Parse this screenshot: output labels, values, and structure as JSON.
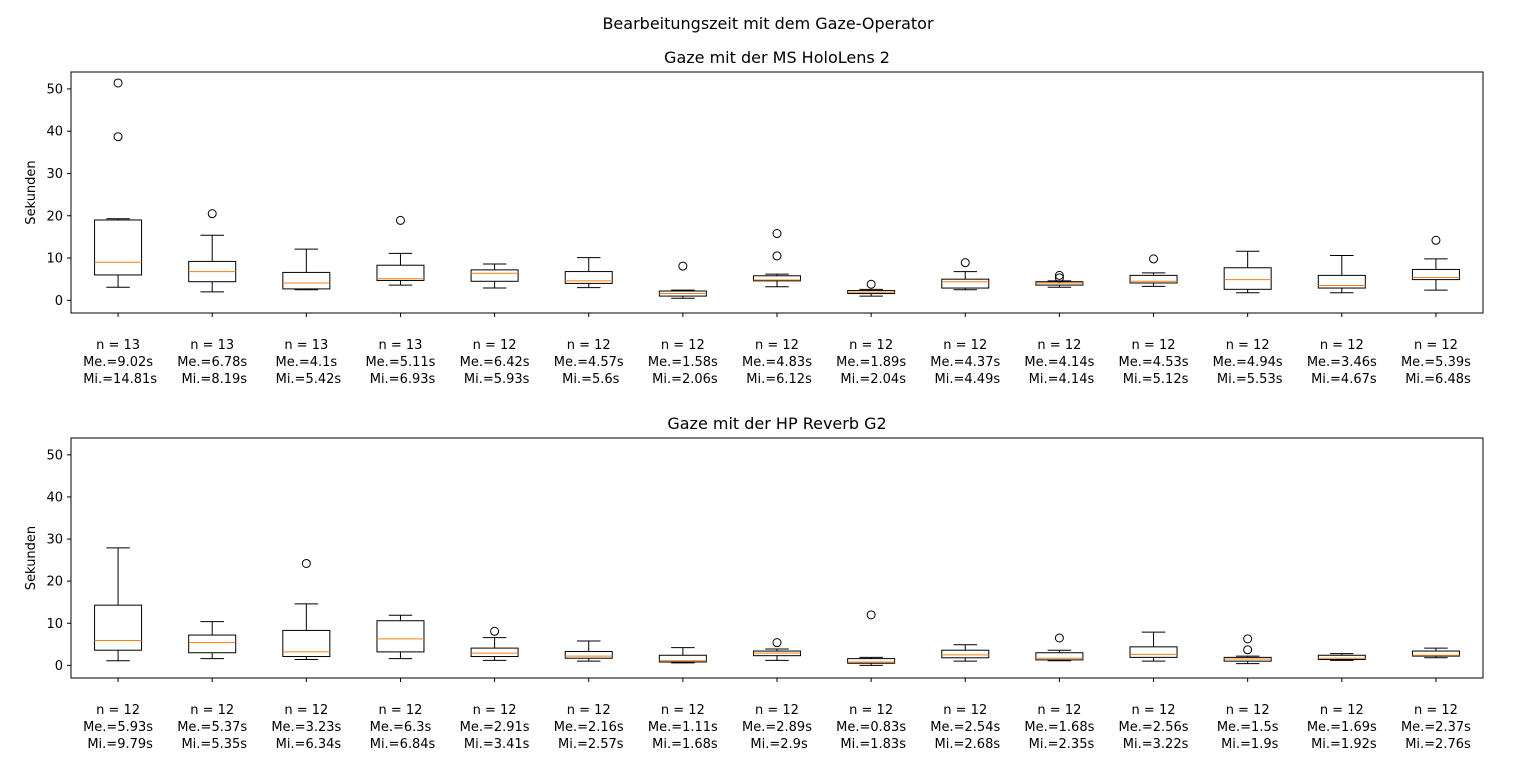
{
  "figure_title": "Bearbeitungszeit mit dem Gaze-Operator",
  "colors": {
    "box": "#000000",
    "median": "#ff7f0e",
    "background": "#ffffff"
  },
  "chart_data": [
    {
      "type": "boxplot",
      "title": "Gaze mit der MS HoloLens 2",
      "ylabel": "Sekunden",
      "ylim": [
        -3,
        54
      ],
      "yticks": [
        "0",
        "10",
        "20",
        "30",
        "40",
        "50"
      ],
      "grid": false,
      "boxes": [
        {
          "label": "n = 13\nMe.=9.02s\n Mi.=14.81s",
          "whislo": 3.1,
          "q1": 6.0,
          "med": 9.0,
          "q3": 19.0,
          "whishi": 19.3,
          "fliers": [
            38.7,
            51.4
          ]
        },
        {
          "label": "n = 13\nMe.=6.78s\n Mi.=8.19s",
          "whislo": 2.0,
          "q1": 4.4,
          "med": 6.8,
          "q3": 9.2,
          "whishi": 15.4,
          "fliers": [
            20.5
          ]
        },
        {
          "label": "n = 13\nMe.=4.1s\n Mi.=5.42s",
          "whislo": 2.5,
          "q1": 2.7,
          "med": 4.1,
          "q3": 6.6,
          "whishi": 12.1,
          "fliers": []
        },
        {
          "label": "n = 13\nMe.=5.11s\n Mi.=6.93s",
          "whislo": 3.6,
          "q1": 4.7,
          "med": 5.1,
          "q3": 8.3,
          "whishi": 11.1,
          "fliers": [
            18.9
          ]
        },
        {
          "label": "n = 12\nMe.=6.42s\n Mi.=5.93s",
          "whislo": 2.9,
          "q1": 4.5,
          "med": 6.4,
          "q3": 7.2,
          "whishi": 8.6,
          "fliers": []
        },
        {
          "label": "n = 12\nMe.=4.57s\n Mi.=5.6s",
          "whislo": 3.0,
          "q1": 4.0,
          "med": 4.6,
          "q3": 6.8,
          "whishi": 10.1,
          "fliers": []
        },
        {
          "label": "n = 12\nMe.=1.58s\n Mi.=2.06s",
          "whislo": 0.5,
          "q1": 1.0,
          "med": 1.6,
          "q3": 2.2,
          "whishi": 2.4,
          "fliers": [
            8.1
          ]
        },
        {
          "label": "n = 12\nMe.=4.83s\n Mi.=6.12s",
          "whislo": 3.2,
          "q1": 4.6,
          "med": 4.8,
          "q3": 5.8,
          "whishi": 6.2,
          "fliers": [
            10.5,
            15.8
          ]
        },
        {
          "label": "n = 12\nMe.=1.89s\n Mi.=2.04s",
          "whislo": 1.0,
          "q1": 1.6,
          "med": 1.9,
          "q3": 2.3,
          "whishi": 2.6,
          "fliers": [
            3.8
          ]
        },
        {
          "label": "n = 12\nMe.=4.37s\n Mi.=4.49s",
          "whislo": 2.5,
          "q1": 2.9,
          "med": 4.4,
          "q3": 5.0,
          "whishi": 6.8,
          "fliers": [
            8.9
          ]
        },
        {
          "label": "n = 12\nMe.=4.14s\n Mi.=4.14s",
          "whislo": 3.1,
          "q1": 3.6,
          "med": 4.1,
          "q3": 4.4,
          "whishi": 4.6,
          "fliers": [
            5.3,
            5.9
          ]
        },
        {
          "label": "n = 12\nMe.=4.53s\n Mi.=5.12s",
          "whislo": 3.3,
          "q1": 4.1,
          "med": 4.5,
          "q3": 5.9,
          "whishi": 6.5,
          "fliers": [
            9.8
          ]
        },
        {
          "label": "n = 12\nMe.=4.94s\n Mi.=5.53s",
          "whislo": 1.8,
          "q1": 2.6,
          "med": 4.9,
          "q3": 7.7,
          "whishi": 11.6,
          "fliers": []
        },
        {
          "label": "n = 12\nMe.=3.46s\n Mi.=4.67s",
          "whislo": 1.8,
          "q1": 2.9,
          "med": 3.5,
          "q3": 5.9,
          "whishi": 10.6,
          "fliers": []
        },
        {
          "label": "n = 12\nMe.=5.39s\n Mi.=6.48s",
          "whislo": 2.4,
          "q1": 4.9,
          "med": 5.4,
          "q3": 7.3,
          "whishi": 9.8,
          "fliers": [
            14.2
          ]
        }
      ]
    },
    {
      "type": "boxplot",
      "title": "Gaze mit der HP Reverb G2",
      "ylabel": "Sekunden",
      "ylim": [
        -3,
        54
      ],
      "yticks": [
        "0",
        "10",
        "20",
        "30",
        "40",
        "50"
      ],
      "grid": false,
      "boxes": [
        {
          "label": "n = 12\nMe.=5.93s\n Mi.=9.79s",
          "whislo": 1.1,
          "q1": 3.6,
          "med": 5.9,
          "q3": 14.3,
          "whishi": 27.9,
          "fliers": []
        },
        {
          "label": "n = 12\nMe.=5.37s\n Mi.=5.35s",
          "whislo": 1.6,
          "q1": 3.0,
          "med": 5.4,
          "q3": 7.2,
          "whishi": 10.4,
          "fliers": []
        },
        {
          "label": "n = 12\nMe.=3.23s\n Mi.=6.34s",
          "whislo": 1.4,
          "q1": 2.1,
          "med": 3.2,
          "q3": 8.3,
          "whishi": 14.6,
          "fliers": [
            24.2
          ]
        },
        {
          "label": "n = 12\nMe.=6.3s\n Mi.=6.84s",
          "whislo": 1.6,
          "q1": 3.2,
          "med": 6.3,
          "q3": 10.6,
          "whishi": 11.9,
          "fliers": []
        },
        {
          "label": "n = 12\nMe.=2.91s\n Mi.=3.41s",
          "whislo": 1.2,
          "q1": 2.1,
          "med": 2.9,
          "q3": 4.1,
          "whishi": 6.6,
          "fliers": [
            8.1
          ]
        },
        {
          "label": "n = 12\nMe.=2.16s\n Mi.=2.57s",
          "whislo": 1.0,
          "q1": 1.7,
          "med": 2.2,
          "q3": 3.3,
          "whishi": 5.8,
          "fliers": []
        },
        {
          "label": "n = 12\nMe.=1.11s\n Mi.=1.68s",
          "whislo": 0.6,
          "q1": 0.8,
          "med": 1.1,
          "q3": 2.4,
          "whishi": 4.2,
          "fliers": []
        },
        {
          "label": "n = 12\nMe.=2.89s\n Mi.=2.9s",
          "whislo": 1.2,
          "q1": 2.3,
          "med": 2.9,
          "q3": 3.4,
          "whishi": 3.9,
          "fliers": [
            5.4
          ]
        },
        {
          "label": "n = 12\nMe.=0.83s\n Mi.=1.83s",
          "whislo": 0.0,
          "q1": 0.5,
          "med": 0.8,
          "q3": 1.6,
          "whishi": 1.9,
          "fliers": [
            12.0
          ]
        },
        {
          "label": "n = 12\nMe.=2.54s\n Mi.=2.68s",
          "whislo": 1.0,
          "q1": 1.8,
          "med": 2.5,
          "q3": 3.6,
          "whishi": 4.9,
          "fliers": []
        },
        {
          "label": "n = 12\nMe.=1.68s\n Mi.=2.35s",
          "whislo": 1.1,
          "q1": 1.3,
          "med": 1.7,
          "q3": 3.0,
          "whishi": 3.6,
          "fliers": [
            6.5
          ]
        },
        {
          "label": "n = 12\nMe.=2.56s\n Mi.=3.22s",
          "whislo": 1.0,
          "q1": 1.9,
          "med": 2.6,
          "q3": 4.4,
          "whishi": 7.9,
          "fliers": []
        },
        {
          "label": "n = 12\nMe.=1.5s\n Mi.=1.9s",
          "whislo": 0.4,
          "q1": 1.0,
          "med": 1.5,
          "q3": 1.9,
          "whishi": 2.2,
          "fliers": [
            3.7,
            6.3
          ]
        },
        {
          "label": "n = 12\nMe.=1.69s\n Mi.=1.92s",
          "whislo": 1.2,
          "q1": 1.4,
          "med": 1.7,
          "q3": 2.4,
          "whishi": 2.8,
          "fliers": []
        },
        {
          "label": "n = 12\nMe.=2.37s\n Mi.=2.76s",
          "whislo": 1.8,
          "q1": 2.2,
          "med": 2.4,
          "q3": 3.4,
          "whishi": 4.1,
          "fliers": []
        }
      ]
    }
  ]
}
